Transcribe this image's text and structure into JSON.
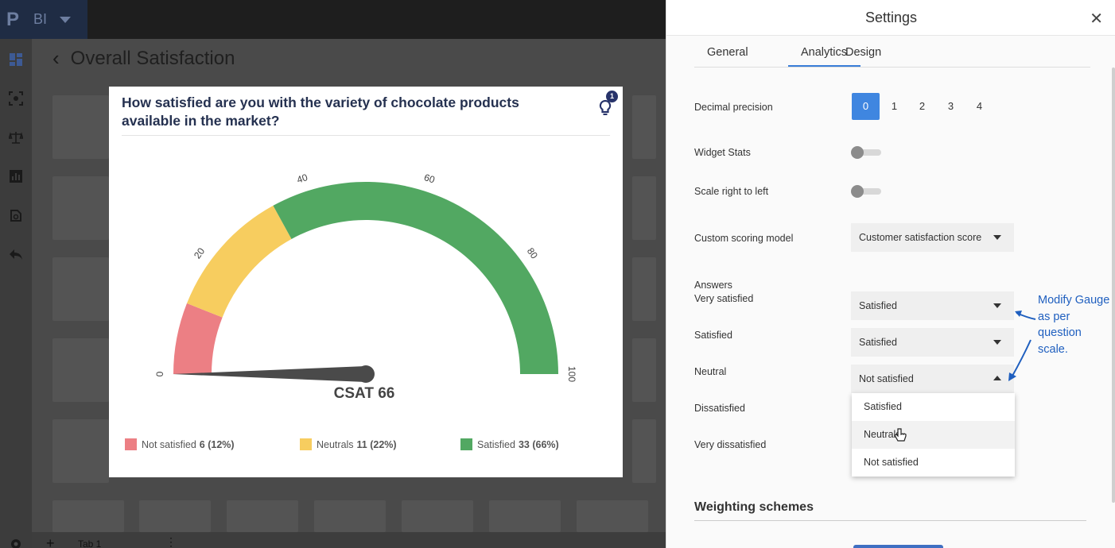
{
  "app": {
    "logo": "P",
    "name": "BI"
  },
  "page": {
    "title": "Overall Satisfaction",
    "bottom_tab": "Tab 1"
  },
  "widget": {
    "question": "How satisfied are you with the variety of chocolate products available in the market?",
    "insight_count": "1",
    "gauge": {
      "min": 0,
      "max": 100,
      "value": 66,
      "ticks": [
        "0",
        "20",
        "40",
        "60",
        "80",
        "100"
      ],
      "segments": [
        {
          "from": 0,
          "to": 12,
          "color": "#ec7f84"
        },
        {
          "from": 12,
          "to": 34,
          "color": "#f7cd5f"
        },
        {
          "from": 34,
          "to": 100,
          "color": "#52a862"
        }
      ],
      "needle_color": "#4a4a4a",
      "value_label": "CSAT 66"
    },
    "legend": [
      {
        "label": "Not satisfied",
        "value": "6 (12%)",
        "color": "#ec7f84"
      },
      {
        "label": "Neutrals",
        "value": "11 (22%)",
        "color": "#f7cd5f"
      },
      {
        "label": "Satisfied",
        "value": "33 (66%)",
        "color": "#52a862"
      }
    ]
  },
  "settings": {
    "title": "Settings",
    "tabs": [
      "General",
      "Analytics",
      "Design"
    ],
    "active_tab": "Analytics",
    "decimal_precision": {
      "label": "Decimal precision",
      "options": [
        "0",
        "1",
        "2",
        "3",
        "4"
      ],
      "selected": "0"
    },
    "widget_stats": {
      "label": "Widget Stats",
      "on": false
    },
    "scale_rtl": {
      "label": "Scale right to left",
      "on": false
    },
    "scoring_model": {
      "label": "Custom scoring model",
      "value": "Customer satisfaction score"
    },
    "answers_header": "Answers",
    "answers": [
      {
        "label": "Very satisfied",
        "value": "Satisfied"
      },
      {
        "label": "Satisfied",
        "value": "Satisfied"
      },
      {
        "label": "Neutral",
        "value": "Not satisfied"
      },
      {
        "label": "Dissatisfied",
        "value": ""
      },
      {
        "label": "Very dissatisfied",
        "value": ""
      }
    ],
    "dropdown_options": [
      "Satisfied",
      "Neutrals",
      "Not satisfied"
    ],
    "dropdown_hover": "Neutrals",
    "annotation": "Modify Gauge as per question scale.",
    "weighting_title": "Weighting schemes"
  },
  "colors": {
    "accent": "#3f86e0",
    "annotation": "#1f5fbf",
    "brand_bg": "#1f2c44"
  }
}
